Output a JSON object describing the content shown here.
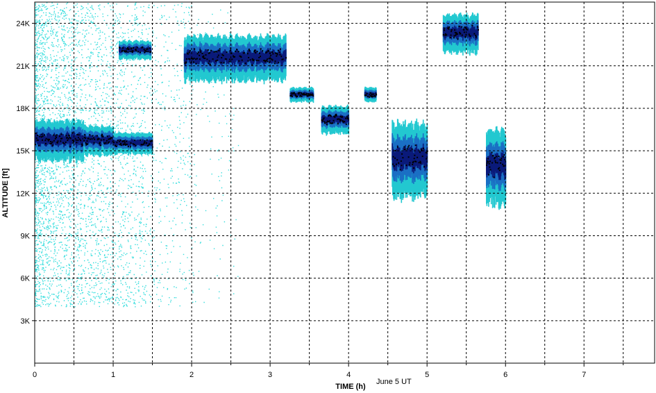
{
  "chart_data": {
    "type": "scatter",
    "title": "",
    "xlabel": "TIME (h)",
    "ylabel": "ALTITUDE [ft]",
    "date_label": "June 5 UT",
    "xlim": [
      0,
      7.9
    ],
    "ylim": [
      0,
      25500
    ],
    "x_ticks": [
      0,
      1,
      2,
      3,
      4,
      5,
      6,
      7
    ],
    "x_tick_labels": [
      "0",
      "1",
      "2",
      "3",
      "4",
      "5",
      "6",
      "7"
    ],
    "y_ticks": [
      3000,
      6000,
      9000,
      12000,
      15000,
      18000,
      21000,
      24000
    ],
    "y_tick_labels": [
      "3K",
      "6K",
      "9K",
      "12K",
      "15K",
      "18K",
      "21K",
      "24K"
    ],
    "grid": true,
    "grid_x": [
      0.5,
      1,
      1.5,
      2,
      2.5,
      3,
      3.5,
      4,
      4.5,
      5,
      5.5,
      6,
      6.5,
      7,
      7.5
    ],
    "colors": {
      "noise": "#33dddd",
      "weak": "#22c8d0",
      "medium": "#1a6fc4",
      "strong": "#0a1a7a",
      "top": "#000000"
    },
    "layers": [
      {
        "name": "",
        "t_start": 0.0,
        "t_end": 0.62,
        "base_ft": 14200,
        "top_ft": 17200
      },
      {
        "name": "",
        "t_start": 0.62,
        "t_end": 1.0,
        "base_ft": 14600,
        "top_ft": 16800
      },
      {
        "name": "",
        "t_start": 1.0,
        "t_end": 1.5,
        "base_ft": 14700,
        "top_ft": 16300
      },
      {
        "name": "",
        "t_start": 1.07,
        "t_end": 1.48,
        "base_ft": 21400,
        "top_ft": 22800
      },
      {
        "name": "",
        "t_start": 1.9,
        "t_end": 3.2,
        "base_ft": 19800,
        "top_ft": 23200
      },
      {
        "name": "",
        "t_start": 3.25,
        "t_end": 3.55,
        "base_ft": 18400,
        "top_ft": 19500
      },
      {
        "name": "",
        "t_start": 3.65,
        "t_end": 4.0,
        "base_ft": 16100,
        "top_ft": 18200
      },
      {
        "name": "",
        "t_start": 4.2,
        "t_end": 4.35,
        "base_ft": 18400,
        "top_ft": 19500
      },
      {
        "name": "",
        "t_start": 4.55,
        "t_end": 5.0,
        "base_ft": 11500,
        "top_ft": 17100
      },
      {
        "name": "",
        "t_start": 5.2,
        "t_end": 5.65,
        "base_ft": 21800,
        "top_ft": 24700
      },
      {
        "name": "",
        "t_start": 5.75,
        "t_end": 6.0,
        "base_ft": 11000,
        "top_ft": 16600
      }
    ]
  }
}
